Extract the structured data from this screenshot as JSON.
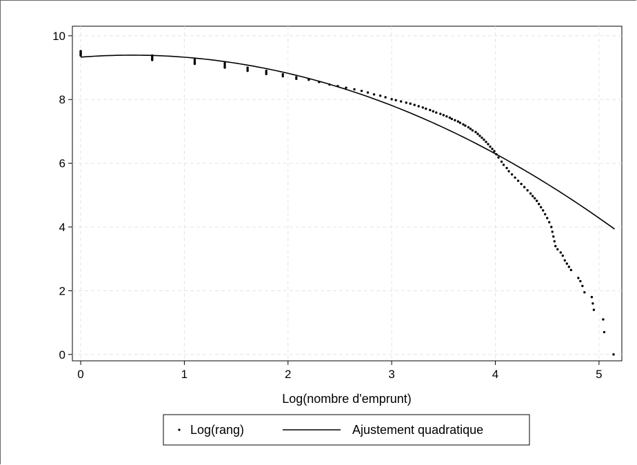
{
  "chart_data": {
    "type": "scatter",
    "title": "",
    "xlabel": "Log(nombre d'emprunt)",
    "ylabel": "",
    "xlim": [
      -0.08,
      5.22
    ],
    "ylim": [
      -0.2,
      10.3
    ],
    "x_ticks": [
      0,
      1,
      2,
      3,
      4,
      5
    ],
    "x_tick_labels": [
      "0",
      "1",
      "2",
      "3",
      "4",
      "5"
    ],
    "y_ticks": [
      0,
      2,
      4,
      6,
      8,
      10
    ],
    "y_tick_labels": [
      "0",
      "2",
      "4",
      "6",
      "8",
      "10"
    ],
    "grid": true,
    "legend_position": "bottom",
    "series": [
      {
        "name": "Log(rang)",
        "type": "scatter",
        "color": "#000000",
        "points": [
          [
            0,
            9.52
          ],
          [
            0,
            9.5
          ],
          [
            0,
            9.47
          ],
          [
            0,
            9.45
          ],
          [
            0,
            9.42
          ],
          [
            0,
            9.4
          ],
          [
            0,
            9.38
          ],
          [
            0.69,
            9.38
          ],
          [
            0.69,
            9.34
          ],
          [
            0.69,
            9.3
          ],
          [
            0.69,
            9.27
          ],
          [
            0.69,
            9.24
          ],
          [
            1.1,
            9.25
          ],
          [
            1.1,
            9.2
          ],
          [
            1.1,
            9.15
          ],
          [
            1.1,
            9.12
          ],
          [
            1.39,
            9.14
          ],
          [
            1.39,
            9.09
          ],
          [
            1.39,
            9.04
          ],
          [
            1.39,
            9.0
          ],
          [
            1.61,
            9.0
          ],
          [
            1.61,
            8.95
          ],
          [
            1.61,
            8.9
          ],
          [
            1.79,
            8.9
          ],
          [
            1.79,
            8.85
          ],
          [
            1.79,
            8.8
          ],
          [
            1.95,
            8.79
          ],
          [
            1.95,
            8.73
          ],
          [
            2.08,
            8.7
          ],
          [
            2.08,
            8.65
          ],
          [
            2.2,
            8.62
          ],
          [
            2.3,
            8.55
          ],
          [
            2.4,
            8.47
          ],
          [
            2.48,
            8.42
          ],
          [
            2.56,
            8.37
          ],
          [
            2.64,
            8.32
          ],
          [
            2.71,
            8.27
          ],
          [
            2.77,
            8.22
          ],
          [
            2.83,
            8.16
          ],
          [
            2.89,
            8.12
          ],
          [
            2.94,
            8.07
          ],
          [
            3.0,
            8.01
          ],
          [
            3.04,
            7.98
          ],
          [
            3.09,
            7.94
          ],
          [
            3.14,
            7.9
          ],
          [
            3.18,
            7.87
          ],
          [
            3.22,
            7.83
          ],
          [
            3.26,
            7.79
          ],
          [
            3.3,
            7.75
          ],
          [
            3.33,
            7.71
          ],
          [
            3.37,
            7.67
          ],
          [
            3.4,
            7.63
          ],
          [
            3.43,
            7.59
          ],
          [
            3.47,
            7.55
          ],
          [
            3.5,
            7.51
          ],
          [
            3.53,
            7.47
          ],
          [
            3.56,
            7.43
          ],
          [
            3.58,
            7.39
          ],
          [
            3.61,
            7.35
          ],
          [
            3.64,
            7.31
          ],
          [
            3.66,
            7.27
          ],
          [
            3.69,
            7.22
          ],
          [
            3.71,
            7.18
          ],
          [
            3.74,
            7.13
          ],
          [
            3.76,
            7.08
          ],
          [
            3.78,
            7.03
          ],
          [
            3.81,
            6.98
          ],
          [
            3.83,
            6.92
          ],
          [
            3.85,
            6.86
          ],
          [
            3.87,
            6.8
          ],
          [
            3.89,
            6.74
          ],
          [
            3.91,
            6.67
          ],
          [
            3.93,
            6.6
          ],
          [
            3.95,
            6.52
          ],
          [
            3.97,
            6.45
          ],
          [
            3.99,
            6.38
          ],
          [
            4.01,
            6.28
          ],
          [
            4.03,
            6.18
          ],
          [
            4.06,
            6.05
          ],
          [
            4.08,
            5.95
          ],
          [
            4.11,
            5.85
          ],
          [
            4.13,
            5.75
          ],
          [
            4.16,
            5.65
          ],
          [
            4.19,
            5.55
          ],
          [
            4.22,
            5.45
          ],
          [
            4.25,
            5.35
          ],
          [
            4.28,
            5.25
          ],
          [
            4.31,
            5.15
          ],
          [
            4.34,
            5.05
          ],
          [
            4.36,
            4.97
          ],
          [
            4.38,
            4.9
          ],
          [
            4.4,
            4.82
          ],
          [
            4.42,
            4.72
          ],
          [
            4.44,
            4.62
          ],
          [
            4.46,
            4.52
          ],
          [
            4.48,
            4.4
          ],
          [
            4.5,
            4.28
          ],
          [
            4.52,
            4.15
          ],
          [
            4.54,
            4.0
          ],
          [
            4.55,
            3.85
          ],
          [
            4.56,
            3.7
          ],
          [
            4.57,
            3.55
          ],
          [
            4.58,
            3.4
          ],
          [
            4.6,
            3.3
          ],
          [
            4.63,
            3.2
          ],
          [
            4.65,
            3.1
          ],
          [
            4.67,
            2.95
          ],
          [
            4.69,
            2.85
          ],
          [
            4.71,
            2.75
          ],
          [
            4.73,
            2.65
          ],
          [
            4.8,
            2.4
          ],
          [
            4.82,
            2.3
          ],
          [
            4.84,
            2.15
          ],
          [
            4.86,
            1.95
          ],
          [
            4.93,
            1.8
          ],
          [
            4.94,
            1.6
          ],
          [
            4.95,
            1.4
          ],
          [
            5.04,
            1.1
          ],
          [
            5.05,
            0.7
          ],
          [
            5.14,
            0.0
          ]
        ]
      },
      {
        "name": "Ajustement quadratique",
        "type": "line",
        "color": "#000000",
        "x_range": [
          0,
          5.15
        ],
        "fit": {
          "intercept": 9.33,
          "linear": 0.25,
          "quadratic": -0.252
        }
      }
    ]
  }
}
